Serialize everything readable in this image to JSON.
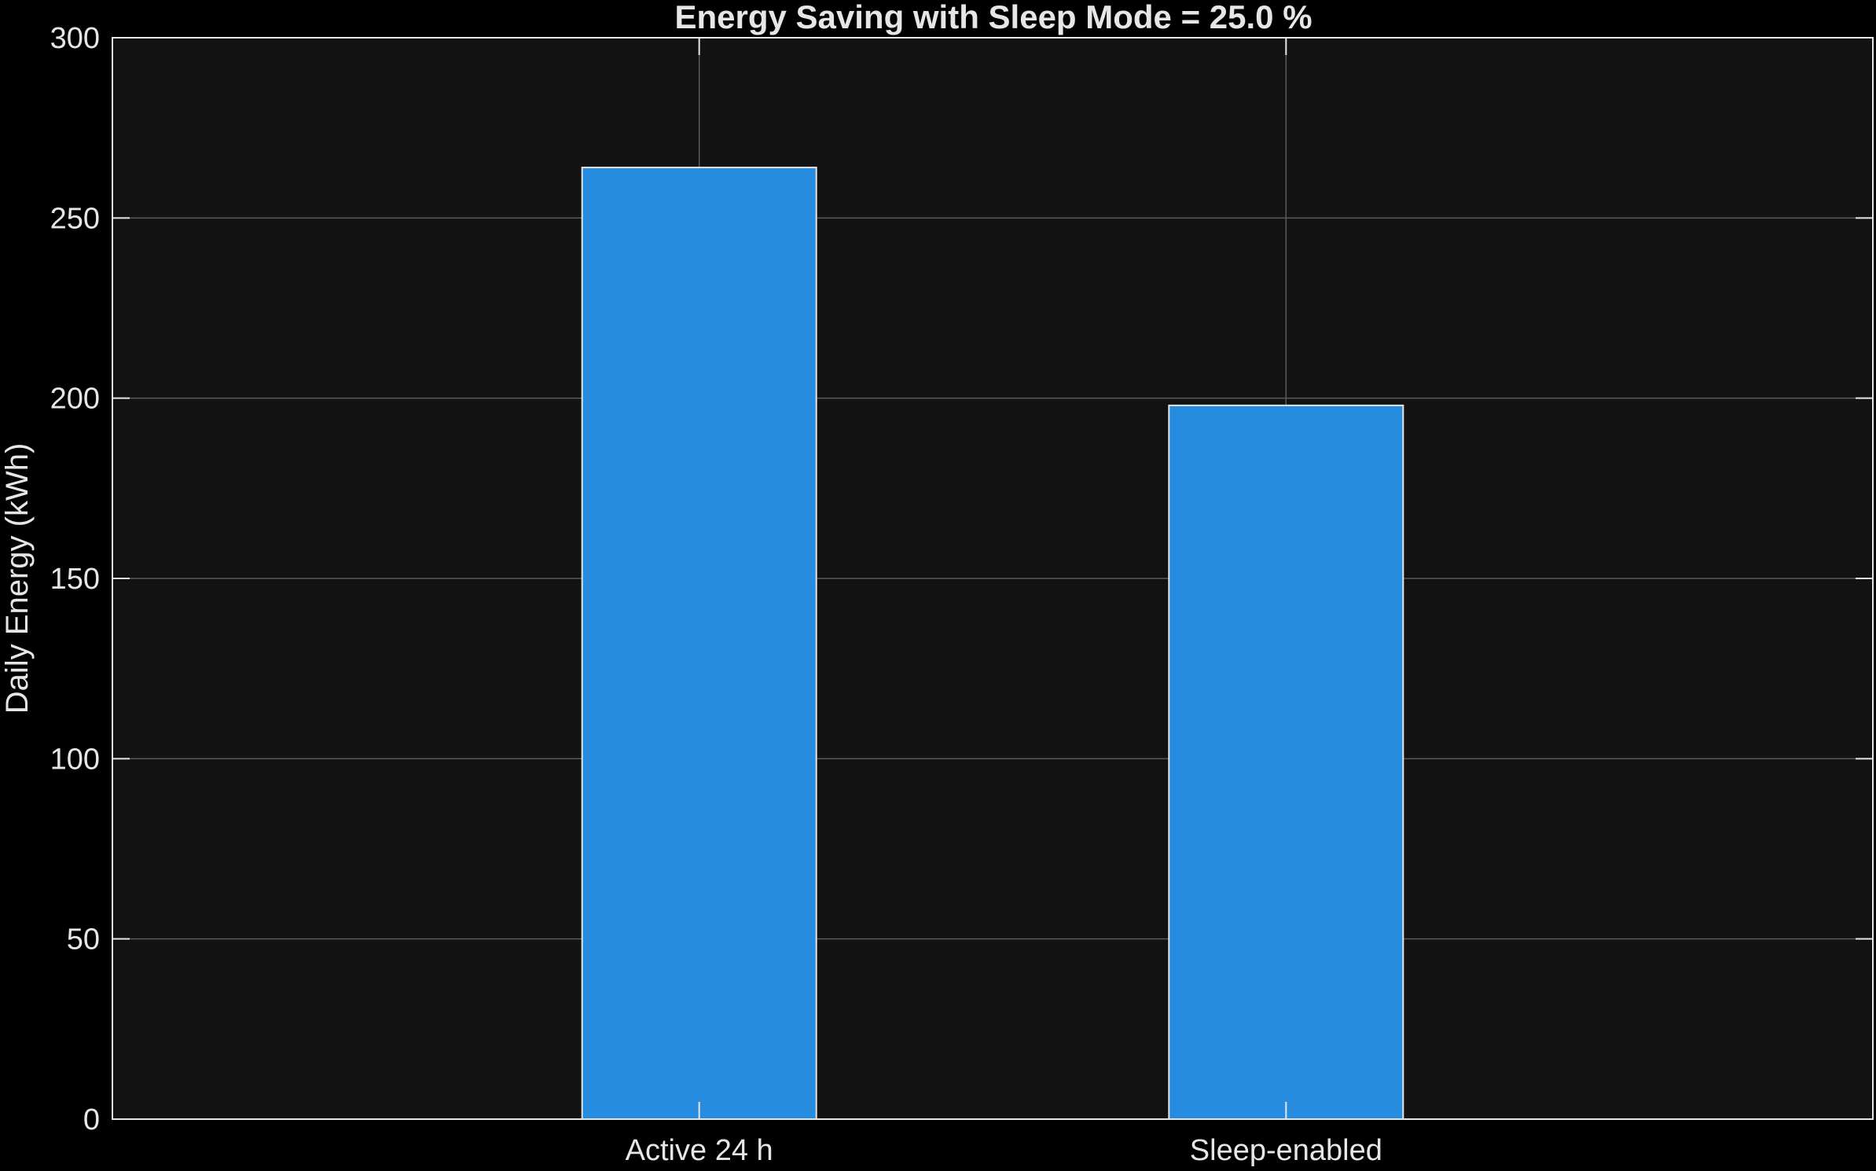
{
  "chart_data": {
    "type": "bar",
    "title": "Energy Saving with Sleep Mode = 25.0 %",
    "xlabel": "",
    "ylabel": "Daily Energy (kWh)",
    "categories": [
      "Active 24 h",
      "Sleep-enabled"
    ],
    "values": [
      264,
      198
    ],
    "ylim": [
      0,
      300
    ],
    "yticks": [
      0,
      50,
      100,
      150,
      200,
      250,
      300
    ],
    "ytick_labels": [
      "0",
      "50",
      "100",
      "150",
      "200",
      "250",
      "300"
    ],
    "grid": true,
    "legend": "none"
  },
  "colors": {
    "background": "#000000",
    "plot_area": "#121212",
    "grid": "#5a5a5a",
    "axis": "#e6e6e6",
    "bar_fill": "#268ce0",
    "bar_edge": "#e6e6e6",
    "text": "#e6e6e6"
  }
}
